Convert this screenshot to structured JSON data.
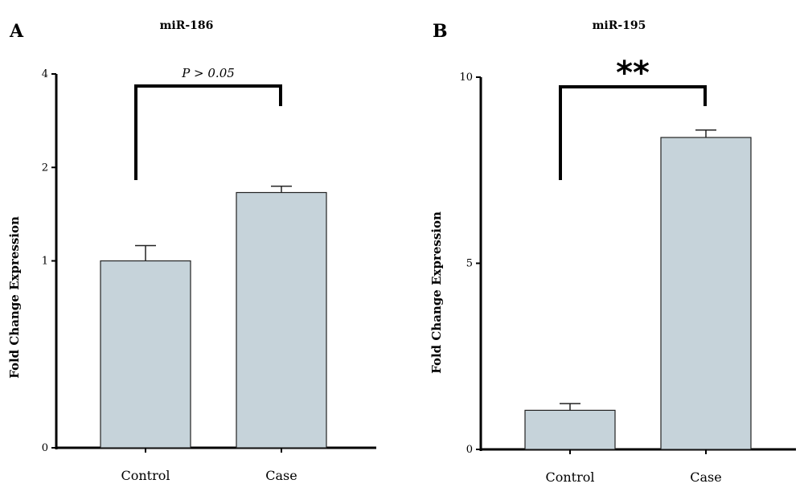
{
  "chart_data": [
    {
      "type": "bar",
      "panel": "A",
      "title": "miR-186",
      "ylabel": "Fold Change Expression",
      "xlabel": "",
      "categories": [
        "Control",
        "Case"
      ],
      "values": [
        1.0,
        1.66
      ],
      "error": [
        0.12,
        0.08
      ],
      "ylim": [
        0,
        4
      ],
      "yticks": [
        0,
        1,
        2,
        4
      ],
      "y_scale": "log2",
      "bar_color": "#c6d3da",
      "significance": {
        "label": "P > 0.05",
        "from": 0,
        "to": 1
      },
      "grid": false,
      "legend": "none"
    },
    {
      "type": "bar",
      "panel": "B",
      "title": "miR-195",
      "ylabel": "Fold Change Expression",
      "xlabel": "",
      "categories": [
        "Control",
        "Case"
      ],
      "values": [
        1.05,
        8.38
      ],
      "error": [
        0.18,
        0.2
      ],
      "ylim": [
        0,
        10
      ],
      "yticks": [
        0,
        5,
        10
      ],
      "y_scale": "linear",
      "bar_color": "#c6d3da",
      "significance": {
        "label": "**",
        "from": 0,
        "to": 1
      },
      "grid": false,
      "legend": "none"
    }
  ]
}
